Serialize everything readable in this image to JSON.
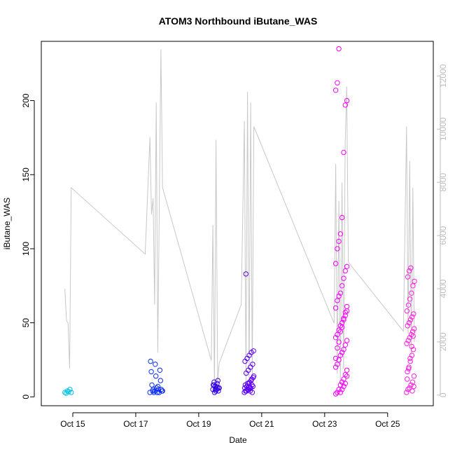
{
  "chart_data": {
    "type": "scatter",
    "title": "ATOM3 Northbound iButane_WAS",
    "xlabel": "Date",
    "ylabel": "iButane_WAS",
    "x_ticks": [
      "Oct 15",
      "Oct 17",
      "Oct 19",
      "Oct 21",
      "Oct 23",
      "Oct 25"
    ],
    "x_tick_days": [
      15,
      17,
      19,
      21,
      23,
      25
    ],
    "xlim_days": [
      14.0,
      26.45
    ],
    "ylim": [
      -6,
      240
    ],
    "y_ticks": [
      0,
      50,
      100,
      150,
      200
    ],
    "y2lim": [
      -400,
      13300
    ],
    "y2_ticks": [
      0,
      2000,
      4000,
      6000,
      8000,
      10000,
      12000
    ],
    "grid": false,
    "legend": "none",
    "colors": {
      "line": "#c8c8c8",
      "right_axis": "#bdbdbd",
      "point_gradient": [
        "#00c8e0",
        "#0040ff",
        "#2000e0",
        "#8000ff",
        "#ff00ff",
        "#ff20e0"
      ]
    },
    "series_points": {
      "name": "",
      "note_units": "x in days of October, y in iButane_WAS",
      "clusters": [
        {
          "x_range": [
            14.75,
            14.95
          ],
          "y": [
            3,
            2.5,
            4,
            3.5,
            5,
            3
          ]
        },
        {
          "x_range": [
            17.45,
            17.85
          ],
          "y": [
            3,
            4,
            3,
            24,
            22,
            18,
            17,
            14,
            11,
            8,
            6,
            5,
            4,
            3,
            4,
            5,
            7,
            4,
            3,
            5
          ]
        },
        {
          "x_range": [
            19.45,
            19.65
          ],
          "y": [
            5,
            4,
            6,
            7,
            11,
            10,
            9,
            8,
            7,
            6,
            5,
            4,
            3,
            6,
            8,
            5
          ]
        },
        {
          "x_range": [
            20.45,
            20.75
          ],
          "y": [
            3,
            4,
            5,
            6,
            7,
            8,
            9,
            10,
            12,
            14,
            16,
            18,
            20,
            22,
            24,
            26,
            28,
            30,
            31,
            83,
            5,
            4,
            3,
            6,
            7,
            9,
            11,
            13,
            4,
            5,
            6,
            8
          ]
        },
        {
          "x_range": [
            23.35,
            23.75
          ],
          "y": [
            2,
            3,
            5,
            8,
            10,
            12,
            15,
            18,
            20,
            22,
            25,
            28,
            30,
            32,
            35,
            38,
            40,
            42,
            45,
            48,
            50,
            52,
            55,
            58,
            60,
            65,
            68,
            70,
            75,
            80,
            85,
            88,
            90,
            100,
            105,
            110,
            121,
            165,
            197,
            200,
            207,
            212,
            235,
            3,
            5,
            7,
            9,
            14,
            26,
            33,
            37,
            44,
            47,
            53,
            57,
            61
          ]
        },
        {
          "x_range": [
            25.6,
            25.85
          ],
          "y": [
            3,
            5,
            6,
            8,
            10,
            14,
            17,
            20,
            24,
            28,
            32,
            36,
            38,
            40,
            42,
            44,
            46,
            48,
            50,
            52,
            54,
            56,
            58,
            62,
            66,
            70,
            75,
            78,
            81,
            85,
            87,
            4,
            7,
            12,
            19,
            26,
            34,
            41
          ]
        }
      ]
    },
    "series_line": {
      "name": "",
      "axis": "right",
      "x": [
        14.75,
        14.8,
        14.85,
        14.9,
        14.95,
        17.3,
        17.45,
        17.5,
        17.55,
        17.6,
        17.65,
        17.7,
        17.8,
        17.85,
        19.4,
        19.45,
        19.5,
        19.55,
        19.6,
        19.65,
        20.35,
        20.45,
        20.5,
        20.55,
        20.6,
        20.65,
        20.7,
        20.75,
        23.3,
        23.35,
        23.4,
        23.45,
        23.5,
        23.55,
        23.6,
        23.65,
        23.7,
        23.75,
        25.5,
        25.6,
        25.65,
        25.7,
        25.75,
        25.8,
        25.85
      ],
      "y": [
        4000,
        2800,
        2700,
        1000,
        7800,
        5300,
        9700,
        6800,
        7400,
        3400,
        11000,
        1600,
        13000,
        7800,
        1300,
        6400,
        200,
        9600,
        500,
        1200,
        3400,
        10300,
        500,
        11400,
        600,
        11000,
        700,
        10100,
        2700,
        8700,
        800,
        7300,
        400,
        8000,
        1000,
        9400,
        11600,
        5000,
        2400,
        10100,
        2300,
        8800,
        1500,
        7800,
        2000
      ]
    }
  }
}
